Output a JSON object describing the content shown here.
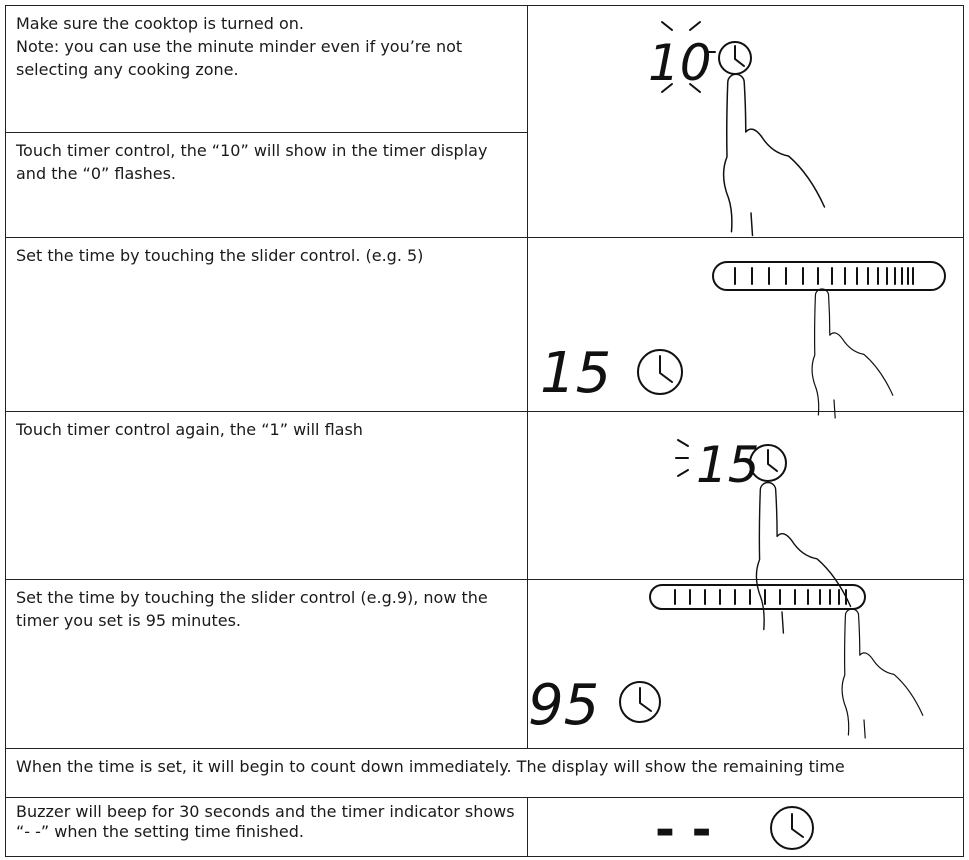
{
  "rows": [
    {
      "lines": [
        "Make sure the cooktop is turned on.",
        "Note: you can use the minute minder even if you’re not selecting any cooking zone."
      ]
    },
    {
      "text": "Touch timer control, the “10” will show in the timer display and the “0” flashes.",
      "display": "10"
    },
    {
      "text": "Set the time by touching the slider control. (e.g. 5)",
      "display": "15"
    },
    {
      "text": "Touch timer control again, the “1” will flash",
      "display": "15"
    },
    {
      "text": "Set the time by touching the slider control (e.g.9), now the timer you set is 95 minutes.",
      "display": "95"
    },
    {
      "text": "When the time is set, it will begin to count down immediately. The display will show the remaining time"
    },
    {
      "text": "Buzzer will beep for 30 seconds and the timer indicator shows “- -” when the setting time finished.",
      "display": "- -"
    }
  ]
}
